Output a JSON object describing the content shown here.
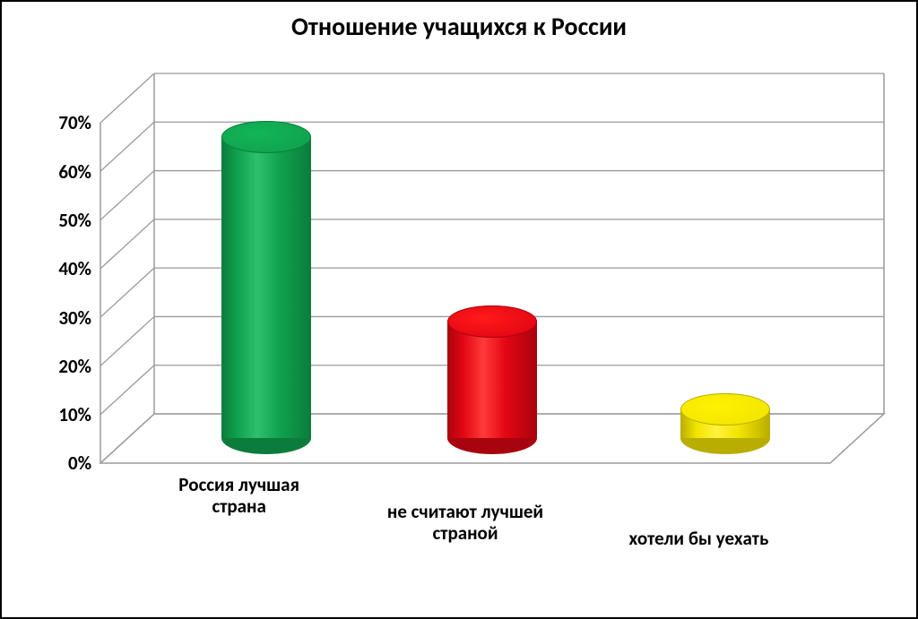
{
  "chart": {
    "type": "3d-cylinder-bar",
    "title": "Отношение учащихся к России",
    "title_fontsize": 28,
    "label_fontsize": 21,
    "tick_fontsize": 21,
    "background_color": "#ffffff",
    "frame_border_color": "#000000",
    "grid_color": "#9a9a9a",
    "wall_outline_color": "#9a9a9a",
    "floor_fill": "#ffffff",
    "y": {
      "min": 0,
      "max": 70,
      "step": 10,
      "format_suffix": "%",
      "ticks": [
        "0%",
        "10%",
        "20%",
        "30%",
        "40%",
        "50%",
        "60%",
        "70%"
      ]
    },
    "perspective": {
      "depth_dx": 60,
      "depth_dy": 55,
      "ellipse_h": 36
    },
    "cylinder_width": 100,
    "series": [
      {
        "label": "Россия лучшая\nстрана",
        "value": 62,
        "fill": "#0fa24e",
        "fill_dark": "#0b7c3c",
        "fill_light": "#2fc06d",
        "top_fill": "#13b558"
      },
      {
        "label": "не считают лучшей\nстраной",
        "value": 24,
        "fill": "#e30613",
        "fill_dark": "#a8040e",
        "fill_light": "#ff3a3a",
        "top_fill": "#ff1a1a"
      },
      {
        "label": "хотели бы уехать",
        "value": 6,
        "fill": "#f2e500",
        "fill_dark": "#b8ad00",
        "fill_light": "#fff23d",
        "top_fill": "#fff200"
      }
    ]
  }
}
